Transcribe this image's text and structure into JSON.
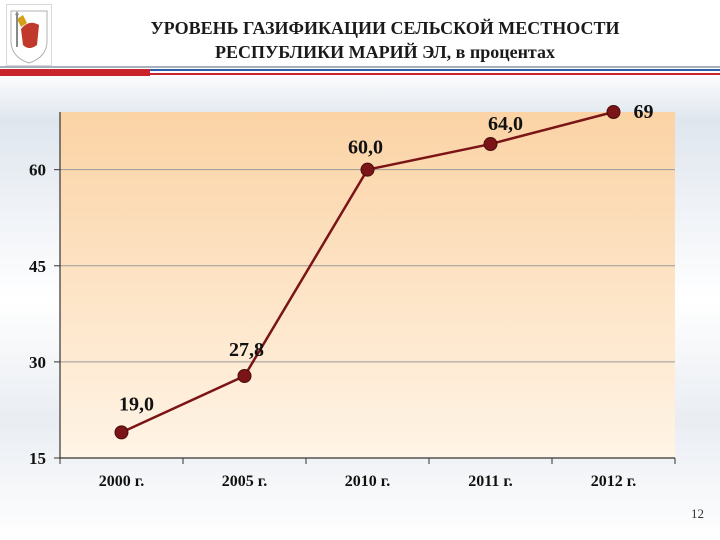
{
  "header": {
    "title_line1": "УРОВЕНЬ ГАЗИФИКАЦИИ СЕЛЬСКОЙ МЕСТНОСТИ",
    "title_line2": "РЕСПУБЛИКИ МАРИЙ ЭЛ, в процентах",
    "logo_icon": "coat-of-arms-icon"
  },
  "chart_data": {
    "type": "line",
    "categories": [
      "2000 г.",
      "2005 г.",
      "2010 г.",
      "2011 г.",
      "2012 г."
    ],
    "values": [
      19.0,
      27.8,
      60.0,
      64.0,
      69
    ],
    "data_labels": [
      "19,0",
      "27,8",
      "60,0",
      "64,0",
      "69"
    ],
    "ylim": [
      15,
      69
    ],
    "yticks": [
      15,
      30,
      45,
      60
    ],
    "title": "",
    "xlabel": "",
    "ylabel": "",
    "grid": true,
    "line_color": "#7b1416",
    "marker_color": "#7b1416",
    "plot_bg_top": "#fbd3a5",
    "plot_bg_bottom": "#fff4e6"
  },
  "footer": {
    "page_number": "12"
  }
}
